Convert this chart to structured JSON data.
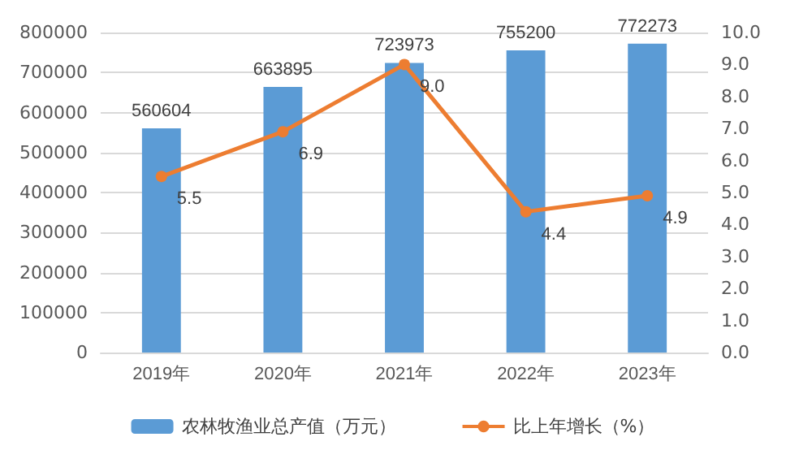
{
  "chart_data": {
    "type": "bar",
    "categories": [
      "2019年",
      "2020年",
      "2021年",
      "2022年",
      "2023年"
    ],
    "series": [
      {
        "name": "农林牧渔业总产值（万元）",
        "color": "#5b9bd5",
        "values": [
          560604,
          663895,
          723973,
          755200,
          772273
        ],
        "value_labels": [
          "560604",
          "663895",
          "723973",
          "755200",
          "772273"
        ]
      },
      {
        "name": "比上年增长（%）",
        "type": "line",
        "axis": "y2",
        "color": "#ed7d31",
        "values": [
          5.5,
          6.9,
          9.0,
          4.4,
          4.9
        ],
        "value_labels": [
          "5.5",
          "6.9",
          "9.0",
          "4.4",
          "4.9"
        ]
      }
    ],
    "ylim": [
      0,
      800000
    ],
    "yticks": [
      0,
      100000,
      200000,
      300000,
      400000,
      500000,
      600000,
      700000,
      800000
    ],
    "y2lim": [
      0,
      10
    ],
    "y2ticks": [
      {
        "value": 0,
        "label": "0.0"
      },
      {
        "value": 1,
        "label": "1.0"
      },
      {
        "value": 2,
        "label": "2.0"
      },
      {
        "value": 3,
        "label": "3.0"
      },
      {
        "value": 4,
        "label": "4.0"
      },
      {
        "value": 5,
        "label": "5.0"
      },
      {
        "value": 6,
        "label": "6.0"
      },
      {
        "value": 7,
        "label": "7.0"
      },
      {
        "value": 8,
        "label": "8.0"
      },
      {
        "value": 9,
        "label": "9.0"
      },
      {
        "value": 10,
        "label": "10.0"
      }
    ],
    "grid": "y",
    "legend": "bottom",
    "marker": "circle"
  }
}
